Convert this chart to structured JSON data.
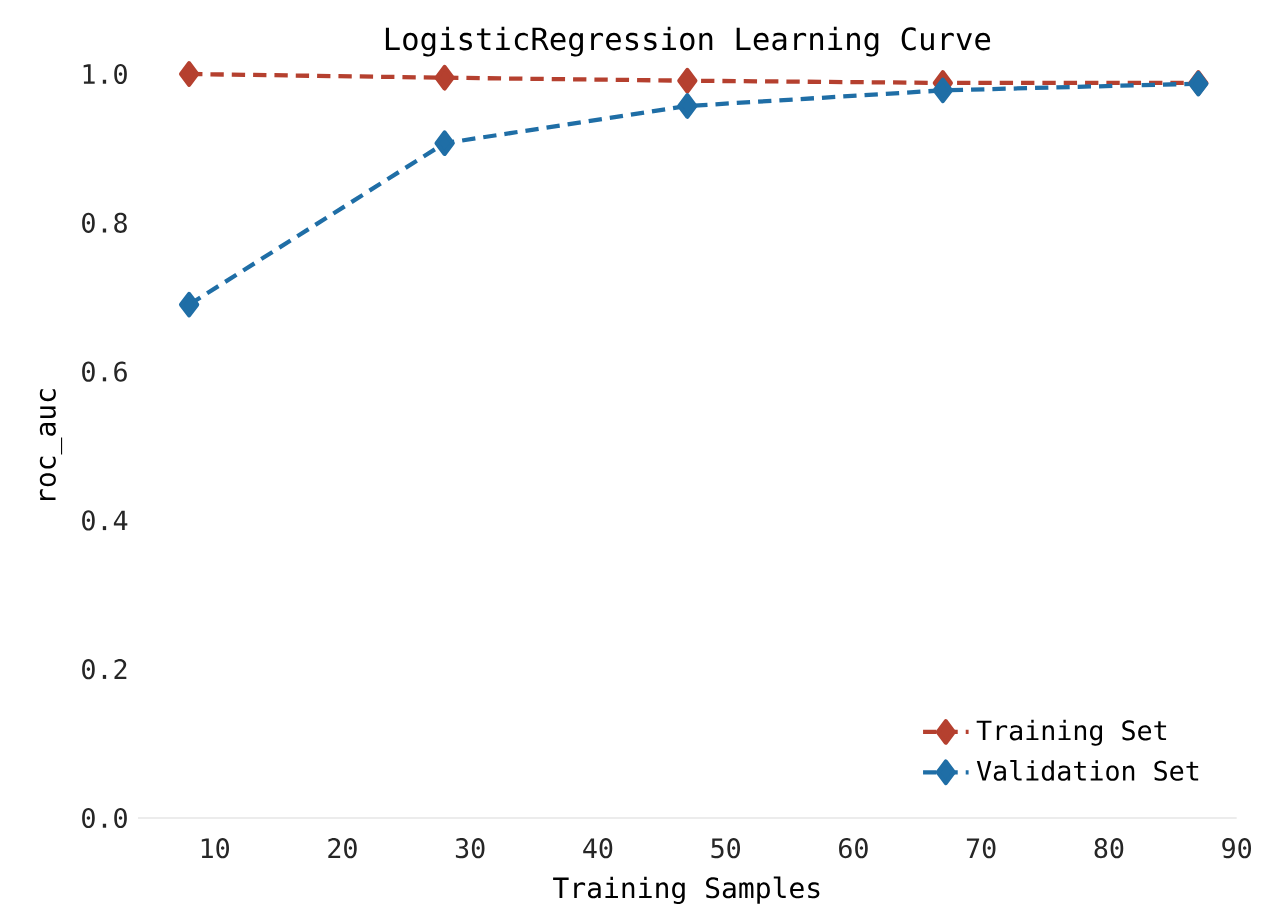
{
  "chart_data": {
    "type": "line",
    "title": "LogisticRegression Learning Curve",
    "xlabel": "Training Samples",
    "ylabel": "roc_auc",
    "x": [
      8,
      28,
      47,
      67,
      87
    ],
    "series": [
      {
        "name": "Training Set",
        "color": "#b5402f",
        "values": [
          1.0,
          0.995,
          0.991,
          0.988,
          0.988
        ]
      },
      {
        "name": "Validation Set",
        "color": "#1f6ea6",
        "values": [
          0.69,
          0.907,
          0.957,
          0.978,
          0.987
        ]
      }
    ],
    "xlim": [
      4,
      90
    ],
    "ylim": [
      0,
      1
    ],
    "xticks": [
      10,
      20,
      30,
      40,
      50,
      60,
      70,
      80,
      90
    ],
    "yticks": [
      {
        "value": 0,
        "label": "0.0"
      },
      0.2,
      0.4,
      0.6,
      0.8,
      {
        "value": 1,
        "label": "1.0"
      }
    ],
    "legend": "bottom right",
    "marker": "diamond",
    "line_style": "dashed"
  }
}
